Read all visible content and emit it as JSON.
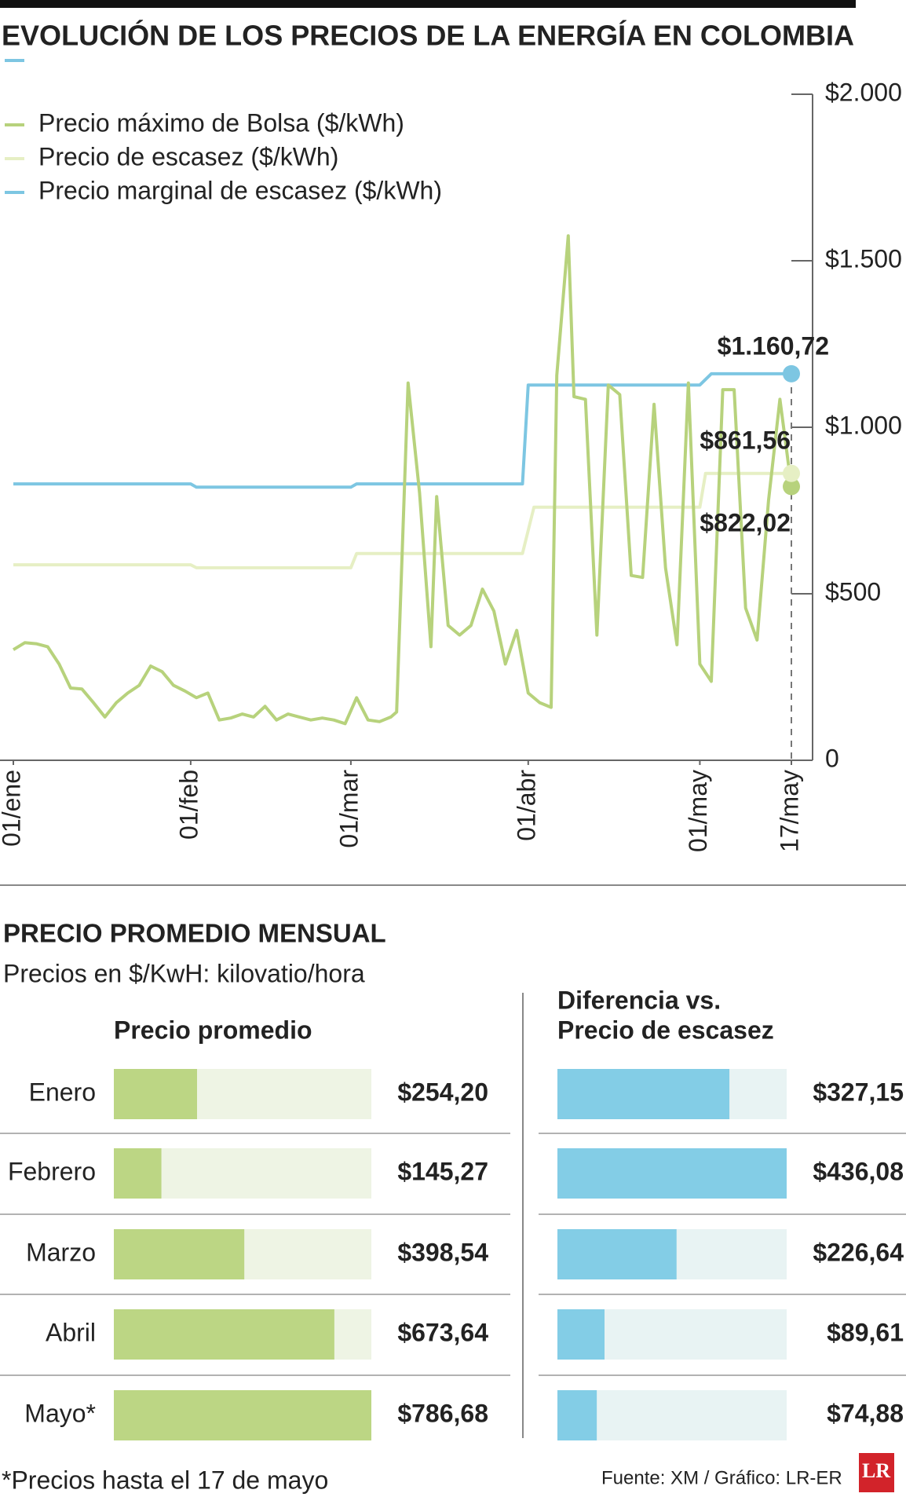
{
  "title": "EVOLUCIÓN DE LOS PRECIOS DE LA ENERGÍA EN COLOMBIA",
  "chart_data": [
    {
      "type": "line",
      "xlim": [
        1,
        137
      ],
      "xticks": [
        {
          "value": 1,
          "label": "01/ene"
        },
        {
          "value": 32,
          "label": "01/feb"
        },
        {
          "value": 60,
          "label": "01/mar"
        },
        {
          "value": 91,
          "label": "01/abr"
        },
        {
          "value": 121,
          "label": "01/may"
        },
        {
          "value": 137,
          "label": "17/may"
        }
      ],
      "ylim": [
        0,
        2000
      ],
      "yticks": [
        0,
        {
          "value": 500,
          "label": "$500"
        },
        {
          "value": 1000,
          "label": "$1.000"
        },
        {
          "value": 1500,
          "label": "$1.500"
        },
        {
          "value": 2000,
          "label": "$2.000"
        }
      ],
      "series": [
        {
          "name": "Precio máximo de Bolsa ($/kWh)",
          "color": "#b7d27c",
          "x": [
            1,
            3,
            5,
            7,
            9,
            11,
            13,
            15,
            17,
            19,
            21,
            23,
            25,
            27,
            29,
            31,
            33,
            35,
            37,
            39,
            41,
            43,
            45,
            47,
            49,
            51,
            53,
            55,
            57,
            59,
            61,
            63,
            65,
            67,
            68,
            70,
            72,
            74,
            75,
            77,
            79,
            81,
            83,
            85,
            87,
            89,
            91,
            93,
            95,
            96,
            98,
            99,
            101,
            103,
            105,
            107,
            109,
            111,
            113,
            115,
            117,
            119,
            121,
            123,
            125,
            127,
            129,
            131,
            133,
            135,
            137
          ],
          "values": [
            332,
            353,
            350,
            341,
            289,
            217,
            214,
            173,
            130,
            173,
            202,
            225,
            283,
            266,
            225,
            208,
            188,
            202,
            121,
            127,
            139,
            130,
            162,
            121,
            139,
            130,
            121,
            127,
            121,
            110,
            188,
            121,
            116,
            130,
            145,
            1133,
            803,
            341,
            792,
            405,
            376,
            405,
            514,
            448,
            289,
            390,
            202,
            173,
            159,
            1156,
            1575,
            1092,
            1084,
            376,
            1127,
            1098,
            555,
            549,
            1069,
            578,
            347,
            1133,
            289,
            237,
            1113,
            1113,
            457,
            361,
            780,
            1084,
            822.02
          ],
          "end_label": "$822,02"
        },
        {
          "name": "Precio de escasez ($/kWh)",
          "color": "#e6efc4",
          "x": [
            1,
            32,
            33,
            60,
            61,
            90,
            92,
            121,
            122,
            137
          ],
          "values": [
            587,
            587,
            578,
            578,
            621,
            621,
            760,
            760,
            861.56,
            861.56
          ],
          "end_label": "$861,56"
        },
        {
          "name": "Precio marginal de escasez ($/kWh)",
          "color": "#7dc6e2",
          "x": [
            1,
            32,
            33,
            60,
            61,
            90,
            91,
            121,
            123,
            137
          ],
          "values": [
            830,
            830,
            820,
            820,
            830,
            830,
            1127,
            1127,
            1160.72,
            1160.72
          ],
          "end_label": "$1.160,72"
        }
      ]
    },
    {
      "type": "barh",
      "title": [
        "Precio promedio"
      ],
      "categories": [
        "Enero",
        "Febrero",
        "Marzo",
        "Abril",
        "Mayo*"
      ],
      "values": [
        254.2,
        145.27,
        398.54,
        673.64,
        786.68
      ],
      "value_labels": [
        "$254,20",
        "$145,27",
        "$398,54",
        "$673,64",
        "$786,68"
      ],
      "color": "#bcd684",
      "xlim": [
        0,
        786.68
      ]
    },
    {
      "type": "barh",
      "title": [
        "Diferencia vs.",
        "Precio de escasez"
      ],
      "values": [
        327.15,
        436.08,
        226.64,
        89.61,
        74.88
      ],
      "value_labels": [
        "$327,15",
        "$436,08",
        "$226,64",
        "$89,61",
        "$74,88"
      ],
      "color": "#83cde6",
      "xlim": [
        0,
        436.08
      ]
    }
  ],
  "section_title": "PRECIO PROMEDIO MENSUAL",
  "section_subtitle": "Precios en $/KwH: kilovatio/hora",
  "footnote": "*Precios hasta el 17 de mayo",
  "source": "Fuente: XM / Gráfico: LR-ER",
  "logo": "LR"
}
